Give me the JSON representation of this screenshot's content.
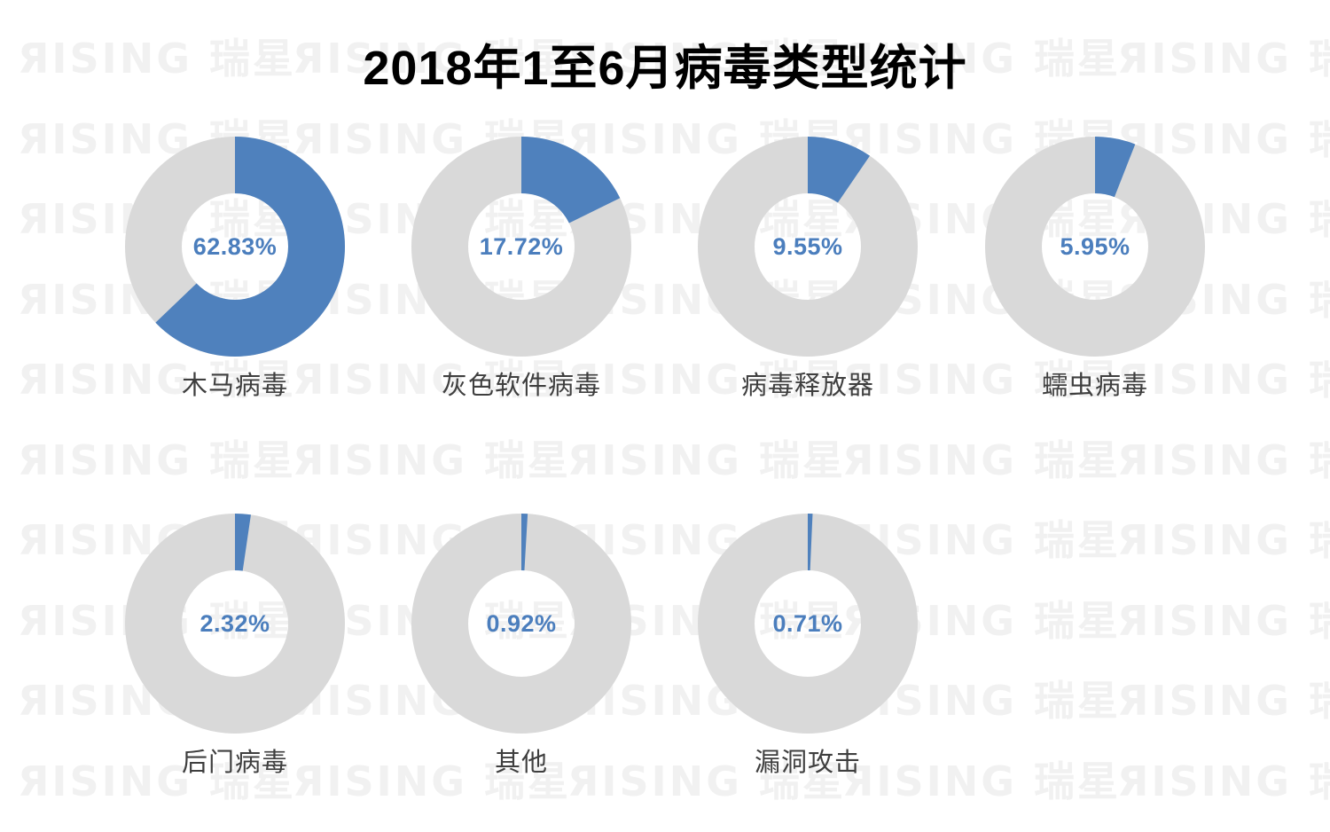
{
  "title": "2018年1至6月病毒类型统计",
  "watermark": {
    "text": "ЯISING 瑞星",
    "color": "#f1f1f1"
  },
  "colors": {
    "slice": "#4F81BD",
    "remainder": "#D9D9D9",
    "value_text": "#4B7EBD",
    "label_text": "#3F3F3F",
    "title_text": "#000000"
  },
  "donuts": [
    {
      "label": "木马病毒",
      "value": 62.83,
      "display": "62.83%"
    },
    {
      "label": "灰色软件病毒",
      "value": 17.72,
      "display": "17.72%"
    },
    {
      "label": "病毒释放器",
      "value": 9.55,
      "display": "9.55%"
    },
    {
      "label": "蠕虫病毒",
      "value": 5.95,
      "display": "5.95%"
    },
    {
      "label": "后门病毒",
      "value": 2.32,
      "display": "2.32%"
    },
    {
      "label": "其他",
      "value": 0.92,
      "display": "0.92%"
    },
    {
      "label": "漏洞攻击",
      "value": 0.71,
      "display": "0.71%"
    }
  ],
  "chart_data": {
    "type": "pie",
    "subtype": "donut-small-multiples",
    "title": "2018年1至6月病毒类型统计",
    "categories": [
      "木马病毒",
      "灰色软件病毒",
      "病毒释放器",
      "蠕虫病毒",
      "后门病毒",
      "其他",
      "漏洞攻击"
    ],
    "values": [
      62.83,
      17.72,
      9.55,
      5.95,
      2.32,
      0.92,
      0.71
    ],
    "unit": "%",
    "start_angle": "12-oclock",
    "direction": "clockwise",
    "hole_ratio": 0.48,
    "slice_color": "#4F81BD",
    "remainder_color": "#D9D9D9",
    "legend": "none",
    "grid": false
  }
}
